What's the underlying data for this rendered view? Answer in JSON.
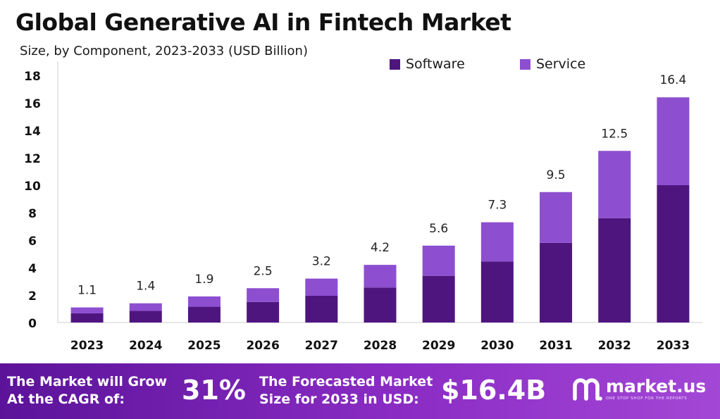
{
  "header": {
    "title": "Global Generative AI in Fintech Market",
    "subtitle": "Size, by Component, 2023-2033 (USD Billion)"
  },
  "colors": {
    "software": "#4f157f",
    "service": "#8d4fd0",
    "footer_start": "#5b1399",
    "footer_end": "#a347d6"
  },
  "chart_data": {
    "type": "bar",
    "stacked": true,
    "categories": [
      "2023",
      "2024",
      "2025",
      "2026",
      "2027",
      "2028",
      "2029",
      "2030",
      "2031",
      "2032",
      "2033"
    ],
    "series": [
      {
        "name": "Software",
        "values": [
          0.67,
          0.85,
          1.15,
          1.5,
          1.95,
          2.55,
          3.4,
          4.45,
          5.8,
          7.6,
          10.0
        ]
      },
      {
        "name": "Service",
        "values": [
          0.43,
          0.55,
          0.75,
          1.0,
          1.25,
          1.65,
          2.2,
          2.85,
          3.7,
          4.9,
          6.4
        ]
      }
    ],
    "totals_labels": [
      "1.1",
      "1.4",
      "1.9",
      "2.5",
      "3.2",
      "4.2",
      "5.6",
      "7.3",
      "9.5",
      "12.5",
      "16.4"
    ],
    "totals": [
      1.1,
      1.4,
      1.9,
      2.5,
      3.2,
      4.2,
      5.6,
      7.3,
      9.5,
      12.5,
      16.4
    ],
    "y_ticks": [
      "0",
      "2",
      "4",
      "6",
      "8",
      "10",
      "12",
      "14",
      "16",
      "18"
    ],
    "ylim": [
      0,
      18
    ],
    "grid": false,
    "legend_position": "top-right"
  },
  "footer": {
    "cagr_line1": "The Market will Grow",
    "cagr_line2": "At the CAGR of:",
    "cagr_value": "31%",
    "forecast_line1": "The Forecasted Market",
    "forecast_line2": "Size for 2033 in USD:",
    "forecast_value": "$16.4B",
    "brand_name": "market.us",
    "brand_tagline": "ONE STOP SHOP FOR THE REPORTS",
    "brand_icon": "market-us-logo-icon"
  }
}
